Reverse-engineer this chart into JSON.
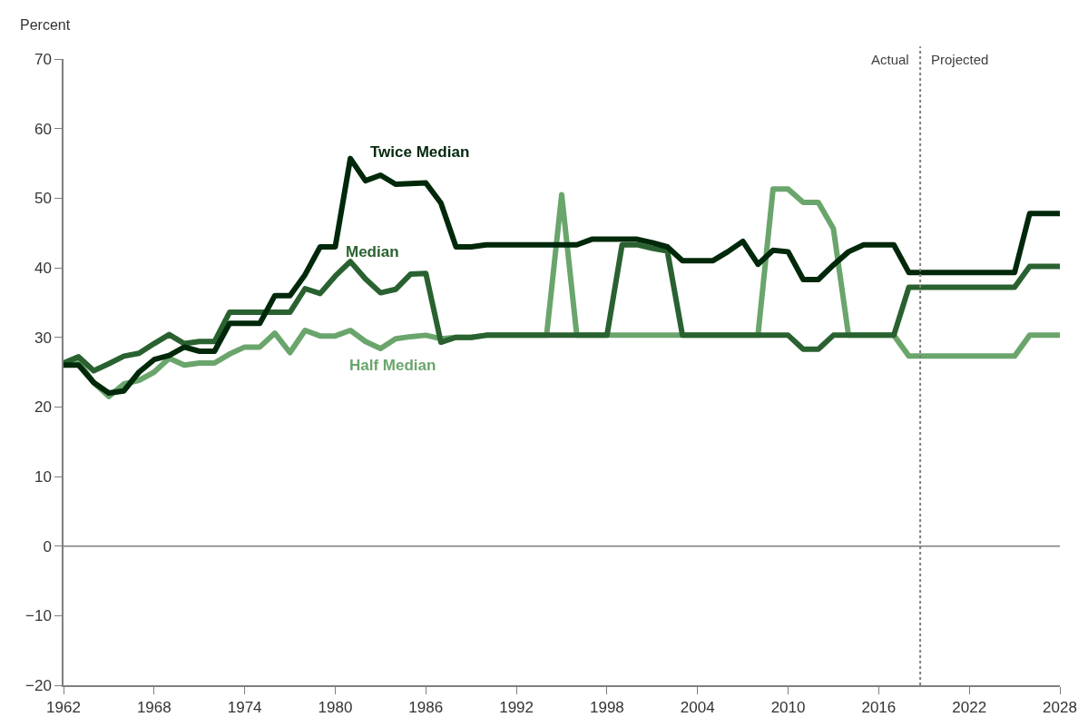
{
  "chart_data": {
    "type": "line",
    "ylabel": "Percent",
    "x": [
      1962,
      1963,
      1964,
      1965,
      1966,
      1967,
      1968,
      1969,
      1970,
      1971,
      1972,
      1973,
      1974,
      1975,
      1976,
      1977,
      1978,
      1979,
      1980,
      1981,
      1982,
      1983,
      1984,
      1985,
      1986,
      1987,
      1988,
      1989,
      1990,
      1991,
      1992,
      1993,
      1994,
      1995,
      1996,
      1997,
      1998,
      1999,
      2000,
      2001,
      2002,
      2003,
      2004,
      2005,
      2006,
      2007,
      2008,
      2009,
      2010,
      2011,
      2012,
      2013,
      2014,
      2015,
      2016,
      2017,
      2018,
      2019,
      2020,
      2021,
      2022,
      2023,
      2024,
      2025,
      2026,
      2027,
      2028
    ],
    "series": [
      {
        "name": "Half Median",
        "color": "#6aa56c",
        "values": [
          26.3,
          26.5,
          23.5,
          21.5,
          23.3,
          23.8,
          25,
          27,
          26,
          26.3,
          26.3,
          27.6,
          28.6,
          28.6,
          30.6,
          27.8,
          31,
          30.2,
          30.2,
          31,
          29.4,
          28.4,
          29.8,
          30.1,
          30.3,
          29.8,
          30,
          30,
          30.3,
          30.3,
          30.3,
          30.3,
          30.3,
          50.5,
          30.3,
          30.3,
          30.3,
          30.3,
          30.3,
          30.3,
          30.3,
          30.3,
          30.3,
          30.3,
          30.3,
          30.3,
          30.3,
          51.3,
          51.3,
          49.4,
          49.4,
          45.6,
          30.3,
          30.3,
          30.3,
          30.3,
          27.3,
          27.3,
          27.3,
          27.3,
          27.3,
          27.3,
          27.3,
          27.3,
          30.3,
          30.3,
          30.3
        ]
      },
      {
        "name": "Median",
        "color": "#2a6130",
        "values": [
          26.3,
          27.2,
          25.2,
          26.2,
          27.3,
          27.7,
          29.1,
          30.4,
          29.1,
          29.4,
          29.4,
          33.6,
          33.6,
          33.6,
          33.6,
          33.6,
          37,
          36.3,
          38.8,
          40.9,
          38.4,
          36.4,
          36.9,
          39.1,
          39.2,
          29.3,
          30,
          30,
          30.3,
          30.3,
          30.3,
          30.3,
          30.3,
          30.3,
          30.3,
          30.3,
          30.3,
          43.3,
          43.3,
          42.8,
          42.4,
          30.3,
          30.3,
          30.3,
          30.3,
          30.3,
          30.3,
          30.3,
          30.3,
          28.3,
          28.3,
          30.3,
          30.3,
          30.3,
          30.3,
          30.3,
          37.2,
          37.2,
          37.2,
          37.2,
          37.2,
          37.2,
          37.2,
          37.2,
          40.2,
          40.2,
          40.2
        ]
      },
      {
        "name": "Twice Median",
        "color": "#00280a",
        "values": [
          26,
          26,
          23.5,
          22,
          22.3,
          25,
          26.8,
          27.4,
          28.6,
          28,
          28,
          32,
          32,
          32,
          36,
          36,
          39,
          43,
          43,
          55.7,
          52.5,
          53.3,
          52,
          52.1,
          52.2,
          49.3,
          43,
          43,
          43.3,
          43.3,
          43.3,
          43.3,
          43.3,
          43.3,
          43.3,
          44.1,
          44.1,
          44.1,
          44.1,
          43.6,
          43,
          41,
          41,
          41,
          42.3,
          43.8,
          40.5,
          42.5,
          42.3,
          38.3,
          38.3,
          40.4,
          42.3,
          43.3,
          43.3,
          43.3,
          39.3,
          39.3,
          39.3,
          39.3,
          39.3,
          39.3,
          39.3,
          39.3,
          47.8,
          47.8,
          47.8
        ]
      }
    ],
    "xlim": [
      1962,
      2028
    ],
    "xticks": [
      1962,
      1968,
      1974,
      1980,
      1986,
      1992,
      1998,
      2004,
      2010,
      2016,
      2022,
      2028
    ],
    "ylim": [
      -20,
      70
    ],
    "yticks": [
      -20,
      -10,
      0,
      10,
      20,
      30,
      40,
      50,
      60,
      70
    ],
    "ref_lines": [
      {
        "axis": "x",
        "value": 2018.75,
        "color": "#7f7f7f",
        "line_style": "dotted"
      },
      {
        "axis": "y",
        "value": 0,
        "color": "#7f7f7f",
        "line_style": "solid"
      }
    ],
    "annotations": [
      "Actual",
      "Projected"
    ],
    "legend": false,
    "line_style": "solid",
    "marker": "none"
  }
}
